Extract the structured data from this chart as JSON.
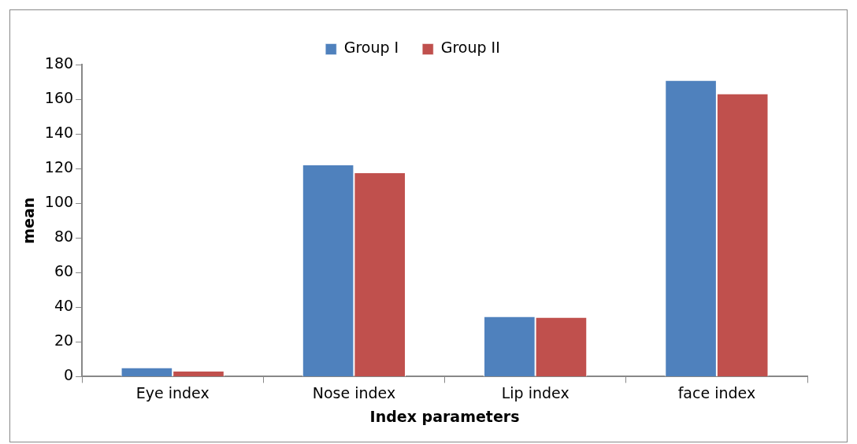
{
  "chart_data": {
    "type": "bar",
    "xlabel": "Index parameters",
    "ylabel": "mean",
    "categories": [
      "Eye index",
      "Nose index",
      "Lip index",
      "face index"
    ],
    "series": [
      {
        "name": "Group I",
        "color": "#4f81bd",
        "values": [
          5,
          122,
          34.5,
          170.7
        ]
      },
      {
        "name": "Group II",
        "color": "#c0504d",
        "values": [
          3,
          117.4,
          34,
          163
        ]
      }
    ],
    "ylim": [
      0,
      180
    ],
    "yticks": [
      0,
      20,
      40,
      60,
      80,
      100,
      120,
      140,
      160,
      180
    ],
    "grid": false,
    "legend": "top"
  }
}
